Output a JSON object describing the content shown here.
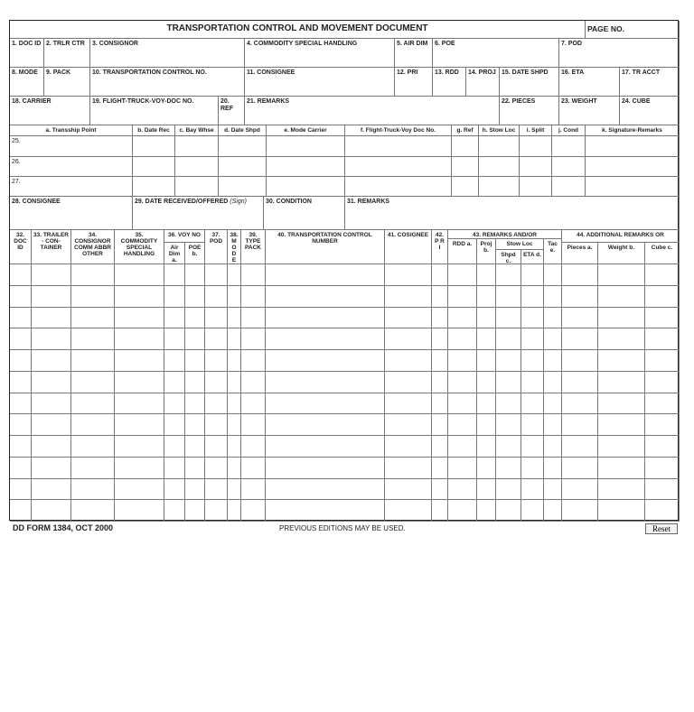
{
  "title": "TRANSPORTATION CONTROL AND MOVEMENT DOCUMENT",
  "page_no": "PAGE NO.",
  "fields": {
    "f1": "1. DOC ID",
    "f2": "2. TRLR CTR",
    "f3": "3. CONSIGNOR",
    "f4": "4. COMMODITY SPECIAL HANDLING",
    "f5": "5. AIR DIM",
    "f6": "6. POE",
    "f7": "7. POD",
    "f8": "8. MODE",
    "f9": "9. PACK",
    "f10": "10. TRANSPORTATION CONTROL NO.",
    "f11": "11. CONSIGNEE",
    "f12": "12. PRI",
    "f13": "13. RDD",
    "f14": "14. PROJ",
    "f15": "15. DATE SHPD",
    "f16": "16. ETA",
    "f17": "17. TR ACCT",
    "f18": "18. CARRIER",
    "f19": "19. FLIGHT-TRUCK-VOY-DOC NO.",
    "f20": "20. REF",
    "f21": "21. REMARKS",
    "f22": "22. PIECES",
    "f23": "23. WEIGHT",
    "f24": "24. CUBE",
    "f28": "28. CONSIGNEE",
    "f29": "29. DATE RECEIVED/OFFERED",
    "f29s": "(Sign)",
    "f30": "30. CONDITION",
    "f31": "31. REMARKS"
  },
  "transship_headers": [
    "a. Transship Point",
    "b. Date Rec",
    "c. Bay Whse",
    "d. Date Shpd",
    "e. Mode Carrier",
    "f. Flight-Truck-Voy Doc No.",
    "g. Ref",
    "h. Stow Loc",
    "i. Split",
    "j. Cond",
    "k. Signature-Remarks"
  ],
  "transship_rows": [
    "25.",
    "26.",
    "27."
  ],
  "table": {
    "h32": "32. DOC ID",
    "h33": "33. TRAILER - CON- TAINER",
    "h34": "34. CONSIGNOR COMM ABBR OTHER",
    "h35": "35. COMMODITY SPECIAL HANDLING",
    "h36": "36. VOY NO",
    "h36a": "Air Dim a.",
    "h36b": "POE b.",
    "h37": "37. POD",
    "h38": "38. M O D E",
    "h39": "39. TYPE PACK",
    "h40": "40. TRANSPORTATION CONTROL NUMBER",
    "h41": "41. COSIGNEE",
    "h42": "42. P R I",
    "h43": "43. REMARKS AND/OR",
    "h43a": "RDD a.",
    "h43b": "Proj b.",
    "stow": "Stow Loc",
    "h43c": "Shpd c.",
    "h43d": "ETA d.",
    "h43e": "Tac e.",
    "h44": "44. ADDITIONAL REMARKS OR",
    "h44a": "Pieces a.",
    "h44b": "Weight b.",
    "h44c": "Cube c."
  },
  "footer": {
    "form": "DD FORM 1384, OCT 2000",
    "editions": "PREVIOUS EDITIONS MAY BE USED.",
    "reset": "Reset"
  }
}
